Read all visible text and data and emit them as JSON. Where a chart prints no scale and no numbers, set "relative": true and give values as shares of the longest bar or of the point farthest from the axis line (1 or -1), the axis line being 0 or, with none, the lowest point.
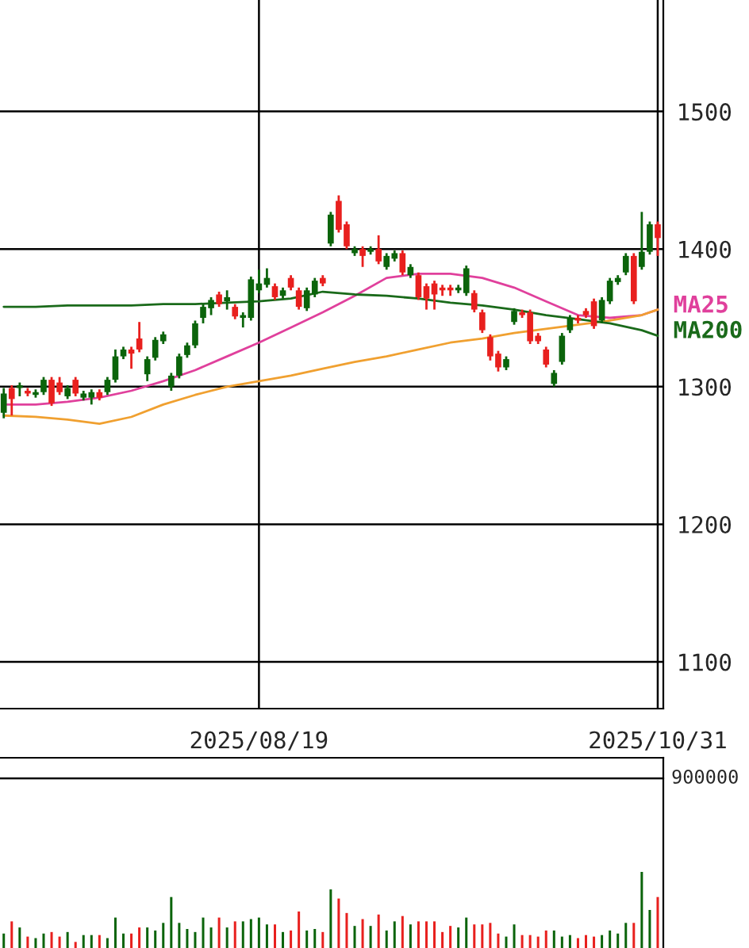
{
  "chart_data": [
    {
      "type": "candlestick",
      "categories": [
        null,
        null,
        null,
        null,
        null,
        null,
        null,
        null,
        null,
        null,
        null,
        null,
        null,
        null,
        null,
        null,
        null,
        null,
        null,
        null,
        null,
        null,
        null,
        null,
        null,
        null,
        null,
        null,
        null,
        null,
        null,
        null,
        "2025/08/19",
        null,
        null,
        null,
        null,
        null,
        null,
        null,
        null,
        null,
        null,
        null,
        null,
        null,
        null,
        null,
        null,
        null,
        null,
        null,
        null,
        null,
        null,
        null,
        null,
        null,
        null,
        null,
        null,
        null,
        null,
        null,
        null,
        null,
        null,
        null,
        null,
        null,
        null,
        null,
        null,
        null,
        null,
        null,
        null,
        null,
        null,
        null,
        null,
        null,
        "2025/10/31"
      ],
      "ohlc": [
        [
          1281,
          1299,
          1277,
          1295
        ],
        [
          1299,
          1301,
          1279,
          1291
        ],
        [
          1299,
          1303,
          1293,
          1301
        ],
        [
          1297,
          1299,
          1293,
          1295
        ],
        [
          1294,
          1298,
          1292,
          1296
        ],
        [
          1296,
          1307,
          1294,
          1305
        ],
        [
          1305,
          1307,
          1286,
          1288
        ],
        [
          1303,
          1307,
          1294,
          1296
        ],
        [
          1293,
          1301,
          1291,
          1299
        ],
        [
          1305,
          1307,
          1293,
          1295
        ],
        [
          1292,
          1297,
          1290,
          1295
        ],
        [
          1292,
          1298,
          1287,
          1296
        ],
        [
          1296,
          1298,
          1290,
          1292
        ],
        [
          1296,
          1307,
          1294,
          1305
        ],
        [
          1305,
          1327,
          1303,
          1322
        ],
        [
          1322,
          1329,
          1320,
          1327
        ],
        [
          1327,
          1329,
          1313,
          1324
        ],
        [
          1335,
          1347,
          1325,
          1327
        ],
        [
          1309,
          1322,
          1304,
          1320
        ],
        [
          1321,
          1336,
          1319,
          1334
        ],
        [
          1333,
          1340,
          1331,
          1338
        ],
        [
          1300,
          1310,
          1297,
          1308
        ],
        [
          1308,
          1324,
          1306,
          1322
        ],
        [
          1323,
          1332,
          1321,
          1330
        ],
        [
          1330,
          1348,
          1328,
          1346
        ],
        [
          1350,
          1360,
          1346,
          1358
        ],
        [
          1357,
          1365,
          1352,
          1363
        ],
        [
          1367,
          1369,
          1358,
          1360
        ],
        [
          1362,
          1370,
          1356,
          1365
        ],
        [
          1358,
          1360,
          1349,
          1351
        ],
        [
          1350,
          1354,
          1343,
          1352
        ],
        [
          1350,
          1380,
          1348,
          1378
        ],
        [
          1370,
          1385,
          1368,
          1375
        ],
        [
          1374,
          1386,
          1372,
          1379
        ],
        [
          1373,
          1375,
          1363,
          1365
        ],
        [
          1366,
          1372,
          1364,
          1370
        ],
        [
          1379,
          1381,
          1370,
          1372
        ],
        [
          1370,
          1372,
          1356,
          1358
        ],
        [
          1357,
          1372,
          1355,
          1370
        ],
        [
          1367,
          1379,
          1365,
          1377
        ],
        [
          1379,
          1381,
          1373,
          1375
        ],
        [
          1404,
          1427,
          1402,
          1425
        ],
        [
          1435,
          1439,
          1412,
          1414
        ],
        [
          1418,
          1420,
          1400,
          1402
        ],
        [
          1397,
          1402,
          1395,
          1400
        ],
        [
          1400,
          1402,
          1387,
          1395
        ],
        [
          1398,
          1402,
          1396,
          1400
        ],
        [
          1400,
          1410,
          1389,
          1391
        ],
        [
          1387,
          1397,
          1385,
          1395
        ],
        [
          1393,
          1399,
          1391,
          1397
        ],
        [
          1397,
          1399,
          1381,
          1383
        ],
        [
          1381,
          1389,
          1379,
          1387
        ],
        [
          1381,
          1383,
          1363,
          1365
        ],
        [
          1373,
          1375,
          1356,
          1364
        ],
        [
          1375,
          1377,
          1356,
          1367
        ],
        [
          1372,
          1374,
          1366,
          1370
        ],
        [
          1372,
          1374,
          1366,
          1370
        ],
        [
          1370,
          1374,
          1368,
          1372
        ],
        [
          1368,
          1388,
          1366,
          1386
        ],
        [
          1368,
          1370,
          1354,
          1356
        ],
        [
          1354,
          1356,
          1339,
          1341
        ],
        [
          1336,
          1338,
          1319,
          1322
        ],
        [
          1324,
          1326,
          1311,
          1314
        ],
        [
          1314,
          1322,
          1312,
          1320
        ],
        [
          1347,
          1357,
          1345,
          1355
        ],
        [
          1354,
          1356,
          1350,
          1352
        ],
        [
          1354,
          1356,
          1331,
          1333
        ],
        [
          1337,
          1339,
          1331,
          1333
        ],
        [
          1327,
          1329,
          1314,
          1316
        ],
        [
          1302,
          1312,
          1300,
          1310
        ],
        [
          1318,
          1339,
          1316,
          1337
        ],
        [
          1341,
          1352,
          1339,
          1350
        ],
        [
          1350,
          1352,
          1346,
          1348
        ],
        [
          1355,
          1357,
          1350,
          1352
        ],
        [
          1362,
          1364,
          1342,
          1344
        ],
        [
          1348,
          1365,
          1346,
          1363
        ],
        [
          1362,
          1379,
          1360,
          1377
        ],
        [
          1376,
          1381,
          1374,
          1379
        ],
        [
          1383,
          1397,
          1381,
          1395
        ],
        [
          1395,
          1397,
          1360,
          1362
        ],
        [
          1387,
          1427,
          1385,
          1398
        ],
        [
          1398,
          1420,
          1396,
          1418
        ],
        [
          1418,
          1420,
          1395,
          1408
        ]
      ],
      "colors": [
        "#0b640b",
        "#e8201e",
        "#0b640b",
        "#e8201e",
        "#0b640b",
        "#0b640b",
        "#e8201e",
        "#e8201e",
        "#0b640b",
        "#e8201e",
        "#0b640b",
        "#0b640b",
        "#e8201e",
        "#0b640b",
        "#0b640b",
        "#0b640b",
        "#e8201e",
        "#e8201e",
        "#0b640b",
        "#0b640b",
        "#0b640b",
        "#0b640b",
        "#0b640b",
        "#0b640b",
        "#0b640b",
        "#0b640b",
        "#0b640b",
        "#e8201e",
        "#0b640b",
        "#e8201e",
        "#0b640b",
        "#0b640b",
        "#0b640b",
        "#0b640b",
        "#e8201e",
        "#0b640b",
        "#e8201e",
        "#e8201e",
        "#0b640b",
        "#0b640b",
        "#e8201e",
        "#0b640b",
        "#e8201e",
        "#e8201e",
        "#0b640b",
        "#e8201e",
        "#0b640b",
        "#e8201e",
        "#0b640b",
        "#0b640b",
        "#e8201e",
        "#0b640b",
        "#e8201e",
        "#e8201e",
        "#e8201e",
        "#e8201e",
        "#e8201e",
        "#0b640b",
        "#0b640b",
        "#e8201e",
        "#e8201e",
        "#e8201e",
        "#e8201e",
        "#0b640b",
        "#0b640b",
        "#e8201e",
        "#e8201e",
        "#e8201e",
        "#e8201e",
        "#0b640b",
        "#0b640b",
        "#0b640b",
        "#e8201e",
        "#e8201e",
        "#e8201e",
        "#0b640b",
        "#0b640b",
        "#0b640b",
        "#0b640b",
        "#e8201e",
        "#0b640b",
        "#0b640b",
        "#e8201e"
      ],
      "ylim": [
        1066,
        1581
      ],
      "yticks": [
        1100,
        1200,
        1300,
        1400,
        1500
      ],
      "grid": true,
      "legend": "right",
      "series": [
        {
          "name": "MA25",
          "type": "line",
          "color": "#e0409c",
          "values": [
            1287,
            null,
            null,
            null,
            1287,
            null,
            null,
            null,
            1289,
            null,
            null,
            null,
            1292,
            null,
            null,
            null,
            1297,
            null,
            null,
            null,
            1304,
            null,
            null,
            null,
            1312,
            null,
            null,
            null,
            1322,
            null,
            null,
            null,
            1332,
            null,
            null,
            null,
            1343,
            null,
            null,
            null,
            1354,
            null,
            null,
            null,
            1366,
            null,
            null,
            null,
            1379,
            null,
            null,
            null,
            1382,
            null,
            null,
            null,
            1382,
            null,
            null,
            null,
            1379,
            null,
            null,
            null,
            1372,
            null,
            null,
            null,
            1362,
            null,
            null,
            null,
            1352,
            null,
            null,
            null,
            1350,
            null,
            null,
            null,
            1352,
            null,
            1356
          ]
        },
        {
          "type": "line",
          "color": "#f0a030",
          "values": [
            1279,
            null,
            null,
            null,
            1278,
            null,
            null,
            null,
            1276,
            null,
            null,
            null,
            1273,
            null,
            null,
            null,
            1278,
            null,
            null,
            null,
            1287,
            null,
            null,
            null,
            1294,
            null,
            null,
            null,
            1300,
            null,
            null,
            null,
            1304,
            null,
            null,
            null,
            1308,
            null,
            null,
            null,
            1313,
            null,
            null,
            null,
            1318,
            null,
            null,
            null,
            1322,
            null,
            null,
            null,
            1327,
            null,
            null,
            null,
            1332,
            null,
            null,
            null,
            1335,
            null,
            null,
            null,
            1339,
            null,
            null,
            null,
            1342,
            null,
            null,
            null,
            1345,
            null,
            null,
            null,
            1348,
            null,
            null,
            null,
            1352,
            null,
            1356
          ]
        },
        {
          "name": "MA200",
          "type": "line",
          "color": "#1a6a1a",
          "values": [
            1358,
            null,
            null,
            null,
            1358,
            null,
            null,
            null,
            1359,
            null,
            null,
            null,
            1359,
            null,
            null,
            null,
            1359,
            null,
            null,
            null,
            1360,
            null,
            null,
            null,
            1360,
            null,
            null,
            null,
            1361,
            null,
            null,
            null,
            1362,
            null,
            null,
            null,
            1364,
            null,
            null,
            null,
            1369,
            null,
            null,
            null,
            1367,
            null,
            null,
            null,
            1366,
            null,
            null,
            null,
            1364,
            null,
            null,
            null,
            1361,
            null,
            null,
            null,
            1359,
            null,
            null,
            null,
            1356,
            null,
            null,
            null,
            1352,
            null,
            null,
            null,
            1349,
            null,
            null,
            null,
            1346,
            null,
            null,
            null,
            1341,
            null,
            1337
          ]
        }
      ]
    },
    {
      "type": "bar",
      "relative": true,
      "annotations": [
        "900000"
      ],
      "categories": [
        null,
        null,
        null,
        null,
        null,
        null,
        null,
        null,
        null,
        null,
        null,
        null,
        null,
        null,
        null,
        null,
        null,
        null,
        null,
        null,
        null,
        null,
        null,
        null,
        null,
        null,
        null,
        null,
        null,
        null,
        null,
        null,
        null,
        null,
        null,
        null,
        null,
        null,
        null,
        null,
        null,
        null,
        null,
        null,
        null,
        null,
        null,
        null,
        null,
        null,
        null,
        null,
        null,
        null,
        null,
        null,
        null,
        null,
        null,
        null,
        null,
        null,
        null,
        null,
        null,
        null,
        null,
        null,
        null,
        null,
        null,
        null,
        null,
        null,
        null,
        null,
        null,
        null,
        null,
        null,
        null,
        null,
        null
      ],
      "values": [
        0.19,
        0.35,
        0.27,
        0.15,
        0.13,
        0.19,
        0.21,
        0.15,
        0.21,
        0.08,
        0.17,
        0.17,
        0.17,
        0.13,
        0.4,
        0.19,
        0.19,
        0.27,
        0.27,
        0.23,
        0.33,
        0.67,
        0.33,
        0.25,
        0.21,
        0.4,
        0.27,
        0.4,
        0.27,
        0.35,
        0.35,
        0.38,
        0.4,
        0.31,
        0.31,
        0.21,
        0.23,
        0.48,
        0.23,
        0.25,
        0.21,
        0.77,
        0.65,
        0.46,
        0.29,
        0.38,
        0.29,
        0.44,
        0.23,
        0.35,
        0.42,
        0.31,
        0.35,
        0.35,
        0.35,
        0.21,
        0.29,
        0.27,
        0.4,
        0.31,
        0.31,
        0.33,
        0.19,
        0.15,
        0.31,
        0.17,
        0.17,
        0.15,
        0.23,
        0.23,
        0.15,
        0.17,
        0.13,
        0.17,
        0.15,
        0.17,
        0.23,
        0.19,
        0.33,
        0.33,
        1,
        0.5,
        0.67
      ],
      "colors": [
        "#0b640b",
        "#e8201e",
        "#0b640b",
        "#e8201e",
        "#0b640b",
        "#0b640b",
        "#e8201e",
        "#e8201e",
        "#0b640b",
        "#e8201e",
        "#0b640b",
        "#0b640b",
        "#e8201e",
        "#0b640b",
        "#0b640b",
        "#0b640b",
        "#e8201e",
        "#e8201e",
        "#0b640b",
        "#0b640b",
        "#0b640b",
        "#0b640b",
        "#0b640b",
        "#0b640b",
        "#0b640b",
        "#0b640b",
        "#0b640b",
        "#e8201e",
        "#0b640b",
        "#e8201e",
        "#0b640b",
        "#0b640b",
        "#0b640b",
        "#0b640b",
        "#e8201e",
        "#0b640b",
        "#e8201e",
        "#e8201e",
        "#0b640b",
        "#0b640b",
        "#e8201e",
        "#0b640b",
        "#e8201e",
        "#e8201e",
        "#0b640b",
        "#e8201e",
        "#0b640b",
        "#e8201e",
        "#0b640b",
        "#0b640b",
        "#e8201e",
        "#0b640b",
        "#e8201e",
        "#e8201e",
        "#e8201e",
        "#e8201e",
        "#e8201e",
        "#0b640b",
        "#0b640b",
        "#e8201e",
        "#e8201e",
        "#e8201e",
        "#e8201e",
        "#0b640b",
        "#0b640b",
        "#e8201e",
        "#e8201e",
        "#e8201e",
        "#e8201e",
        "#0b640b",
        "#0b640b",
        "#0b640b",
        "#e8201e",
        "#e8201e",
        "#e8201e",
        "#0b640b",
        "#0b640b",
        "#0b640b",
        "#0b640b",
        "#e8201e",
        "#0b640b",
        "#0b640b",
        "#e8201e"
      ]
    }
  ]
}
